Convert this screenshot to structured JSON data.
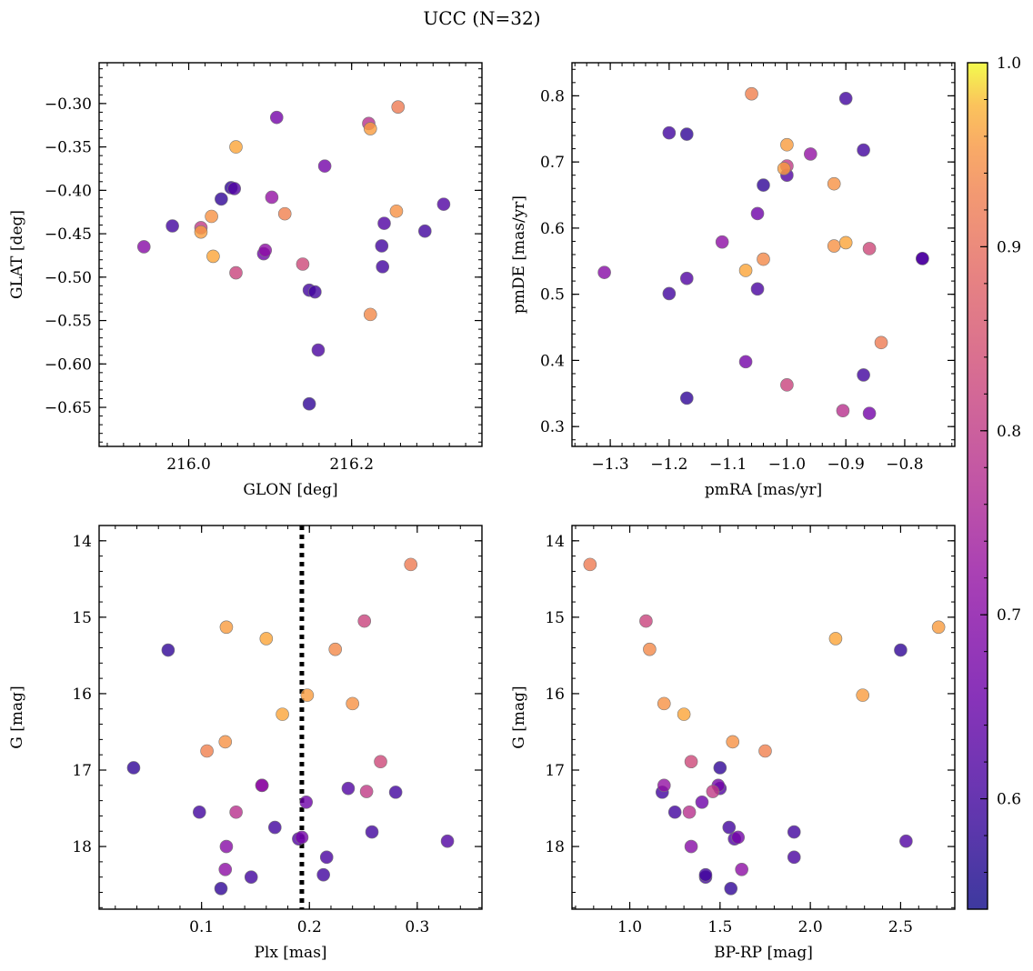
{
  "figure": {
    "title": "UCC (N=32)"
  },
  "colorbar": {
    "min": 0.54,
    "max": 1.0,
    "ticks": [
      0.6,
      0.7,
      0.8,
      0.9,
      1.0
    ],
    "tick_labels": [
      "0.6",
      "0.7",
      "0.8",
      "0.9",
      "1.0"
    ]
  },
  "stars": [
    {
      "glon": 215.945,
      "glat": -0.465,
      "pmra": -1.31,
      "pmde": 0.533,
      "plx": 0.123,
      "g": 18.0,
      "bprp": 1.34,
      "prob": 0.7
    },
    {
      "glon": 215.98,
      "glat": -0.441,
      "pmra": -1.2,
      "pmde": 0.744,
      "plx": 0.098,
      "g": 17.55,
      "bprp": 1.25,
      "prob": 0.6
    },
    {
      "glon": 216.015,
      "glat": -0.443,
      "pmra": -1.0,
      "pmde": 0.694,
      "plx": 0.253,
      "g": 17.28,
      "bprp": 1.46,
      "prob": 0.8
    },
    {
      "glon": 216.015,
      "glat": -0.448,
      "pmra": -1.005,
      "pmde": 0.69,
      "plx": 0.198,
      "g": 16.02,
      "bprp": 2.29,
      "prob": 0.96
    },
    {
      "glon": 216.028,
      "glat": -0.43,
      "pmra": -0.92,
      "pmde": 0.573,
      "plx": 0.24,
      "g": 16.13,
      "bprp": 1.19,
      "prob": 0.95
    },
    {
      "glon": 216.03,
      "glat": -0.476,
      "pmra": -1.07,
      "pmde": 0.536,
      "plx": 0.175,
      "g": 16.27,
      "bprp": 1.3,
      "prob": 0.97
    },
    {
      "glon": 216.04,
      "glat": -0.41,
      "pmra": -1.17,
      "pmde": 0.742,
      "plx": 0.037,
      "g": 16.97,
      "bprp": 1.5,
      "prob": 0.58
    },
    {
      "glon": 216.052,
      "glat": -0.397,
      "pmra": -1.04,
      "pmde": 0.665,
      "plx": 0.118,
      "g": 18.55,
      "bprp": 1.56,
      "prob": 0.58
    },
    {
      "glon": 216.056,
      "glat": -0.398,
      "pmra": -1.0,
      "pmde": 0.68,
      "plx": 0.19,
      "g": 17.9,
      "bprp": 1.58,
      "prob": 0.62
    },
    {
      "glon": 216.058,
      "glat": -0.35,
      "pmra": -0.9,
      "pmde": 0.578,
      "plx": 0.16,
      "g": 15.28,
      "bprp": 2.14,
      "prob": 0.97
    },
    {
      "glon": 216.058,
      "glat": -0.495,
      "pmra": -1.0,
      "pmde": 0.363,
      "plx": 0.251,
      "g": 15.05,
      "bprp": 1.09,
      "prob": 0.82
    },
    {
      "glon": 216.092,
      "glat": -0.473,
      "pmra": -1.05,
      "pmde": 0.622,
      "plx": 0.197,
      "g": 17.42,
      "bprp": 1.4,
      "prob": 0.66
    },
    {
      "glon": 216.094,
      "glat": -0.469,
      "pmra": -1.11,
      "pmde": 0.579,
      "plx": 0.122,
      "g": 18.3,
      "bprp": 1.62,
      "prob": 0.71
    },
    {
      "glon": 216.102,
      "glat": -0.408,
      "pmra": -0.96,
      "pmde": 0.712,
      "plx": 0.156,
      "g": 17.2,
      "bprp": 1.19,
      "prob": 0.72
    },
    {
      "glon": 216.108,
      "glat": -0.316,
      "pmra": -1.07,
      "pmde": 0.398,
      "plx": 0.193,
      "g": 17.88,
      "bprp": 1.6,
      "prob": 0.67
    },
    {
      "glon": 216.118,
      "glat": -0.427,
      "pmra": -1.06,
      "pmde": 0.803,
      "plx": 0.105,
      "g": 16.75,
      "bprp": 1.75,
      "prob": 0.93
    },
    {
      "glon": 216.14,
      "glat": -0.485,
      "pmra": -0.86,
      "pmde": 0.569,
      "plx": 0.266,
      "g": 16.89,
      "bprp": 1.34,
      "prob": 0.83
    },
    {
      "glon": 216.148,
      "glat": -0.515,
      "pmra": -0.9,
      "pmde": 0.796,
      "plx": 0.146,
      "g": 18.4,
      "bprp": 1.42,
      "prob": 0.6
    },
    {
      "glon": 216.148,
      "glat": -0.646,
      "pmra": -1.17,
      "pmde": 0.343,
      "plx": 0.069,
      "g": 15.43,
      "bprp": 2.5,
      "prob": 0.58
    },
    {
      "glon": 216.155,
      "glat": -0.517,
      "pmra": -1.2,
      "pmde": 0.501,
      "plx": 0.168,
      "g": 17.75,
      "bprp": 1.55,
      "prob": 0.6
    },
    {
      "glon": 216.159,
      "glat": -0.584,
      "pmra": -1.05,
      "pmde": 0.508,
      "plx": 0.216,
      "g": 18.14,
      "bprp": 1.91,
      "prob": 0.61
    },
    {
      "glon": 216.167,
      "glat": -0.372,
      "pmra": -0.86,
      "pmde": 0.32,
      "plx": 0.156,
      "g": 17.2,
      "bprp": 1.49,
      "prob": 0.67
    },
    {
      "glon": 216.221,
      "glat": -0.323,
      "pmra": -0.905,
      "pmde": 0.324,
      "plx": 0.132,
      "g": 17.55,
      "bprp": 1.33,
      "prob": 0.78
    },
    {
      "glon": 216.223,
      "glat": -0.329,
      "pmra": -1.0,
      "pmde": 0.726,
      "plx": 0.123,
      "g": 15.13,
      "bprp": 2.71,
      "prob": 0.96
    },
    {
      "glon": 216.223,
      "glat": -0.543,
      "pmra": -1.04,
      "pmde": 0.553,
      "plx": 0.224,
      "g": 15.42,
      "bprp": 1.11,
      "prob": 0.94
    },
    {
      "glon": 216.237,
      "glat": -0.464,
      "pmra": -0.87,
      "pmde": 0.378,
      "plx": 0.213,
      "g": 18.37,
      "bprp": 1.42,
      "prob": 0.6
    },
    {
      "glon": 216.238,
      "glat": -0.488,
      "pmra": -0.87,
      "pmde": 0.718,
      "plx": 0.28,
      "g": 17.29,
      "bprp": 1.18,
      "prob": 0.6
    },
    {
      "glon": 216.24,
      "glat": -0.438,
      "pmra": -1.17,
      "pmde": 0.524,
      "plx": 0.236,
      "g": 17.24,
      "bprp": 1.5,
      "prob": 0.62
    },
    {
      "glon": 216.255,
      "glat": -0.424,
      "pmra": -0.92,
      "pmde": 0.667,
      "plx": 0.122,
      "g": 16.63,
      "bprp": 1.57,
      "prob": 0.95
    },
    {
      "glon": 216.257,
      "glat": -0.304,
      "pmra": -0.84,
      "pmde": 0.427,
      "plx": 0.294,
      "g": 14.31,
      "bprp": 0.78,
      "prob": 0.92
    },
    {
      "glon": 216.29,
      "glat": -0.447,
      "pmra": -0.77,
      "pmde": 0.554,
      "plx": 0.258,
      "g": 17.81,
      "bprp": 1.91,
      "prob": 0.6
    },
    {
      "glon": 216.313,
      "glat": -0.416,
      "pmra": -0.77,
      "pmde": 0.554,
      "plx": 0.328,
      "g": 17.93,
      "bprp": 2.53,
      "prob": 0.62
    }
  ],
  "chart_data": [
    {
      "type": "scatter",
      "name": "glon-glat",
      "xkey": "glon",
      "ykey": "glat",
      "xlabel": "GLON [deg]",
      "ylabel": "GLAT [deg]",
      "xlim": [
        215.89,
        216.36
      ],
      "ylim": [
        -0.695,
        -0.253
      ],
      "invert_y": false,
      "xticks": [
        216.0,
        216.2
      ],
      "xtick_labels": [
        "216.0",
        "216.2"
      ],
      "xminor": 0.02,
      "yticks": [
        -0.3,
        -0.35,
        -0.4,
        -0.45,
        -0.5,
        -0.55,
        -0.6,
        -0.65
      ],
      "ytick_labels": [
        "−0.30",
        "−0.35",
        "−0.40",
        "−0.45",
        "−0.50",
        "−0.55",
        "−0.60",
        "−0.65"
      ],
      "yminor": 0.01
    },
    {
      "type": "scatter",
      "name": "pmra-pmde",
      "xkey": "pmra",
      "ykey": "pmde",
      "xlabel": "pmRA [mas/yr]",
      "ylabel": "pmDE [mas/yr]",
      "xlim": [
        -1.365,
        -0.715
      ],
      "ylim": [
        0.27,
        0.85
      ],
      "invert_y": false,
      "xticks": [
        -1.3,
        -1.2,
        -1.1,
        -1.0,
        -0.9,
        -0.8
      ],
      "xtick_labels": [
        "−1.3",
        "−1.2",
        "−1.1",
        "−1.0",
        "−0.9",
        "−0.8"
      ],
      "xminor": 0.02,
      "yticks": [
        0.3,
        0.4,
        0.5,
        0.6,
        0.7,
        0.8
      ],
      "ytick_labels": [
        "0.3",
        "0.4",
        "0.5",
        "0.6",
        "0.7",
        "0.8"
      ],
      "yminor": 0.02
    },
    {
      "type": "scatter",
      "name": "plx-g",
      "xkey": "plx",
      "ykey": "g",
      "xlabel": "Plx [mas]",
      "ylabel": "G [mag]",
      "xlim": [
        0.005,
        0.36
      ],
      "ylim": [
        14.0,
        18.8
      ],
      "ylim_display": [
        13.8,
        18.82
      ],
      "invert_y": true,
      "xticks": [
        0.1,
        0.2,
        0.3
      ],
      "xtick_labels": [
        "0.1",
        "0.2",
        "0.3"
      ],
      "xminor": 0.02,
      "yticks": [
        14,
        15,
        16,
        17,
        18
      ],
      "ytick_labels": [
        "14",
        "15",
        "16",
        "17",
        "18"
      ],
      "yminor": 0.2,
      "vline": 0.193
    },
    {
      "type": "scatter",
      "name": "bprp-g",
      "xkey": "bprp",
      "ykey": "g",
      "xlabel": "BP-RP [mag]",
      "ylabel": "G [mag]",
      "xlim": [
        0.68,
        2.8
      ],
      "ylim_display": [
        13.8,
        18.82
      ],
      "invert_y": true,
      "xticks": [
        1.0,
        1.5,
        2.0,
        2.5
      ],
      "xtick_labels": [
        "1.0",
        "1.5",
        "2.0",
        "2.5"
      ],
      "xminor": 0.1,
      "yticks": [
        14,
        15,
        16,
        17,
        18
      ],
      "ytick_labels": [
        "14",
        "15",
        "16",
        "17",
        "18"
      ],
      "yminor": 0.2
    }
  ]
}
